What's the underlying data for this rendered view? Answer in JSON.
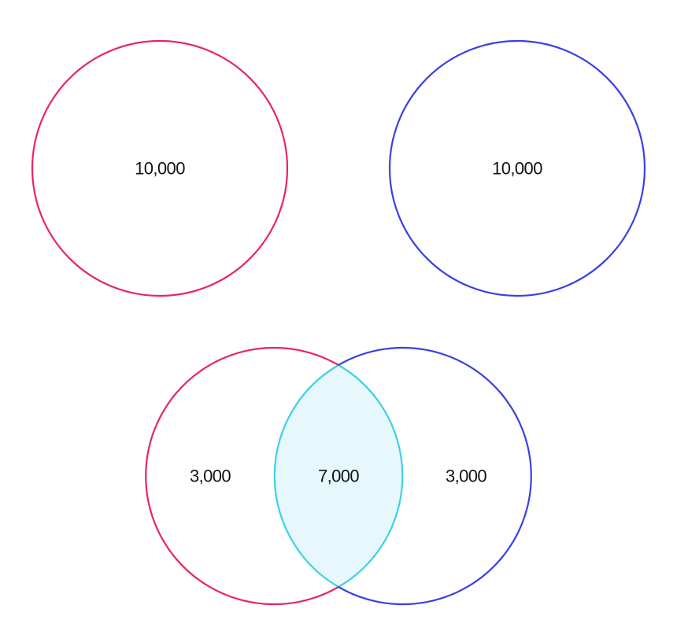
{
  "colors": {
    "set_a": "#e8265b",
    "set_b": "#3a3fe3",
    "overlap_stroke": "#3fcfe6",
    "overlap_fill": "#e6f8fc",
    "text": "#111111",
    "background": "#ffffff"
  },
  "top_circles": {
    "set_a": {
      "value": "10,000"
    },
    "set_b": {
      "value": "10,000"
    }
  },
  "venn": {
    "a_only": "3,000",
    "intersection": "7,000",
    "b_only": "3,000"
  }
}
